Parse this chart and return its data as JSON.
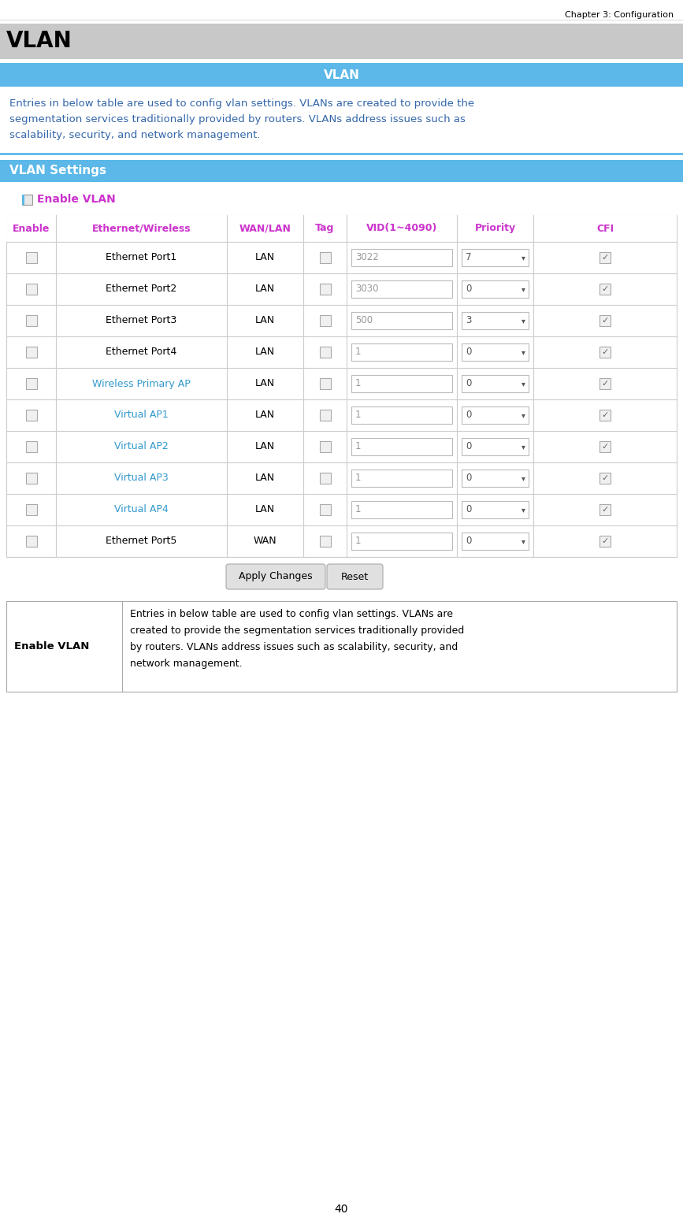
{
  "chapter_header": "Chapter 3: Configuration",
  "page_number": "40",
  "section_title": "VLAN",
  "section_bg_color": "#c8c8c8",
  "blue_header_color": "#5bb8e8",
  "blue_header_text": "VLAN",
  "description_text": "Entries in below table are used to config vlan settings. VLANs are created to provide the\nsegmentation services traditionally provided by routers. VLANs address issues such as\nscalability, security, and network management.",
  "settings_header": "VLAN Settings",
  "enable_vlan_label": "Enable VLAN",
  "table_headers": [
    "Enable",
    "Ethernet/Wireless",
    "WAN/LAN",
    "Tag",
    "VID(1~4090)",
    "Priority",
    "CFI"
  ],
  "table_header_color": "#cc33cc",
  "table_rows": [
    {
      "device": "Ethernet Port1",
      "wan_lan": "LAN",
      "vid": "3022",
      "priority": "7",
      "is_wireless": false
    },
    {
      "device": "Ethernet Port2",
      "wan_lan": "LAN",
      "vid": "3030",
      "priority": "0",
      "is_wireless": false
    },
    {
      "device": "Ethernet Port3",
      "wan_lan": "LAN",
      "vid": "500",
      "priority": "3",
      "is_wireless": false
    },
    {
      "device": "Ethernet Port4",
      "wan_lan": "LAN",
      "vid": "1",
      "priority": "0",
      "is_wireless": false
    },
    {
      "device": "Wireless Primary AP",
      "wan_lan": "LAN",
      "vid": "1",
      "priority": "0",
      "is_wireless": true
    },
    {
      "device": "Virtual AP1",
      "wan_lan": "LAN",
      "vid": "1",
      "priority": "0",
      "is_wireless": true
    },
    {
      "device": "Virtual AP2",
      "wan_lan": "LAN",
      "vid": "1",
      "priority": "0",
      "is_wireless": true
    },
    {
      "device": "Virtual AP3",
      "wan_lan": "LAN",
      "vid": "1",
      "priority": "0",
      "is_wireless": true
    },
    {
      "device": "Virtual AP4",
      "wan_lan": "LAN",
      "vid": "1",
      "priority": "0",
      "is_wireless": true
    },
    {
      "device": "Ethernet Port5",
      "wan_lan": "WAN",
      "vid": "1",
      "priority": "0",
      "is_wireless": false
    }
  ],
  "bottom_info_label": "Enable VLAN",
  "bottom_info_text": "Entries in below table are used to config vlan settings. VLANs are\ncreated to provide the segmentation services traditionally provided\nby routers. VLANs address issues such as scalability, security, and\nnetwork management.",
  "bg_color": "#ffffff",
  "text_color": "#000000",
  "border_color": "#aaaaaa",
  "table_border_color": "#cccccc",
  "purple_color": "#cc33cc",
  "blue_text_color": "#3399cc",
  "desc_text_color": "#3366aa",
  "wireless_color": "#3399cc",
  "checkbox_color": "#dddddd",
  "input_bg": "#f5f5f5",
  "input_border": "#bbbbbb"
}
